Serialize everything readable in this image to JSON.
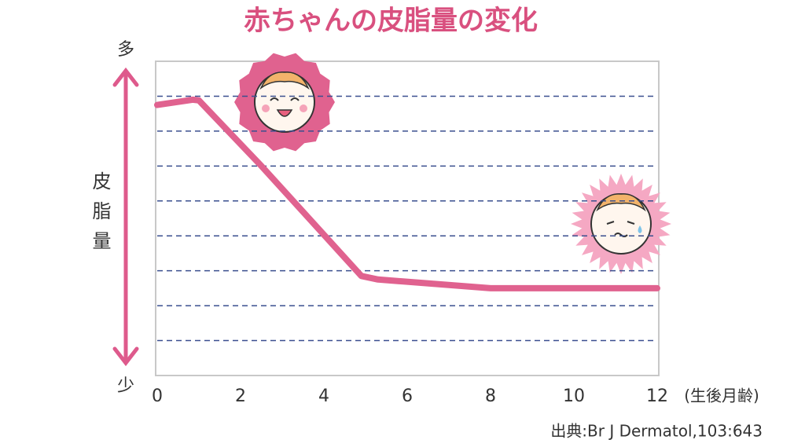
{
  "chart_data": {
    "type": "line",
    "title": "赤ちゃんの皮脂量の変化",
    "y_top_label": "多",
    "y_bottom_label": "少",
    "ylabel": "皮脂量",
    "xlabel": "(生後月齢)",
    "source": "出典:Br J Dermatol,103:643",
    "x": [
      0,
      0.85,
      1,
      2.5,
      4.9,
      5.3,
      8,
      12
    ],
    "values": [
      7.75,
      7.9,
      7.88,
      6.0,
      2.85,
      2.75,
      2.5,
      2.5
    ],
    "color": "#e0628f",
    "xlim": [
      0,
      12
    ],
    "xticks": [
      0,
      2,
      4,
      6,
      8,
      10,
      12
    ],
    "ylim": [
      0,
      9
    ],
    "yticks": [
      1,
      2,
      3,
      4,
      5,
      6,
      7,
      8
    ],
    "grid": true
  }
}
